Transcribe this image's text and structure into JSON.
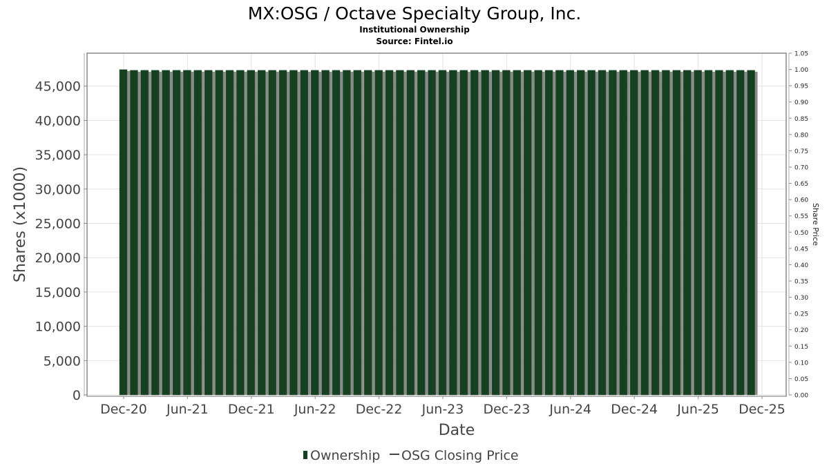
{
  "chart_data": {
    "type": "bar",
    "title": "MX:OSG / Octave Specialty Group, Inc.",
    "subtitle": "Institutional Ownership",
    "source": "Source: Fintel.io",
    "xlabel": "Date",
    "ylabel": "Shares (x1000)",
    "y2label": "Share Price",
    "ylim": [
      0,
      49800
    ],
    "y2lim": [
      0,
      1.05
    ],
    "yticks": [
      0,
      5000,
      10000,
      15000,
      20000,
      25000,
      30000,
      35000,
      40000,
      45000
    ],
    "ytick_labels": [
      "0",
      "5,000",
      "10,000",
      "15,000",
      "20,000",
      "25,000",
      "30,000",
      "35,000",
      "40,000",
      "45,000"
    ],
    "y2tick_labels": [
      "0.00",
      "0.05",
      "0.10",
      "0.15",
      "0.20",
      "0.25",
      "0.30",
      "0.35",
      "0.40",
      "0.45",
      "0.50",
      "0.55",
      "0.60",
      "0.65",
      "0.70",
      "0.75",
      "0.80",
      "0.85",
      "0.90",
      "0.95",
      "1.00",
      "1.05"
    ],
    "xtick_labels": [
      "Dec-20",
      "Jun-21",
      "Dec-21",
      "Jun-22",
      "Dec-22",
      "Jun-23",
      "Dec-23",
      "Jun-24",
      "Dec-24",
      "Jun-25",
      "Dec-25"
    ],
    "x_start": "Dec-20",
    "bar_count": 60,
    "first_value": 47400,
    "repeat_value": 47300,
    "grid": true,
    "legend_position": "bottom",
    "series": [
      {
        "name": "Ownership",
        "color": "#173f22"
      },
      {
        "name": "OSG Closing Price",
        "color": "#555555"
      }
    ]
  }
}
